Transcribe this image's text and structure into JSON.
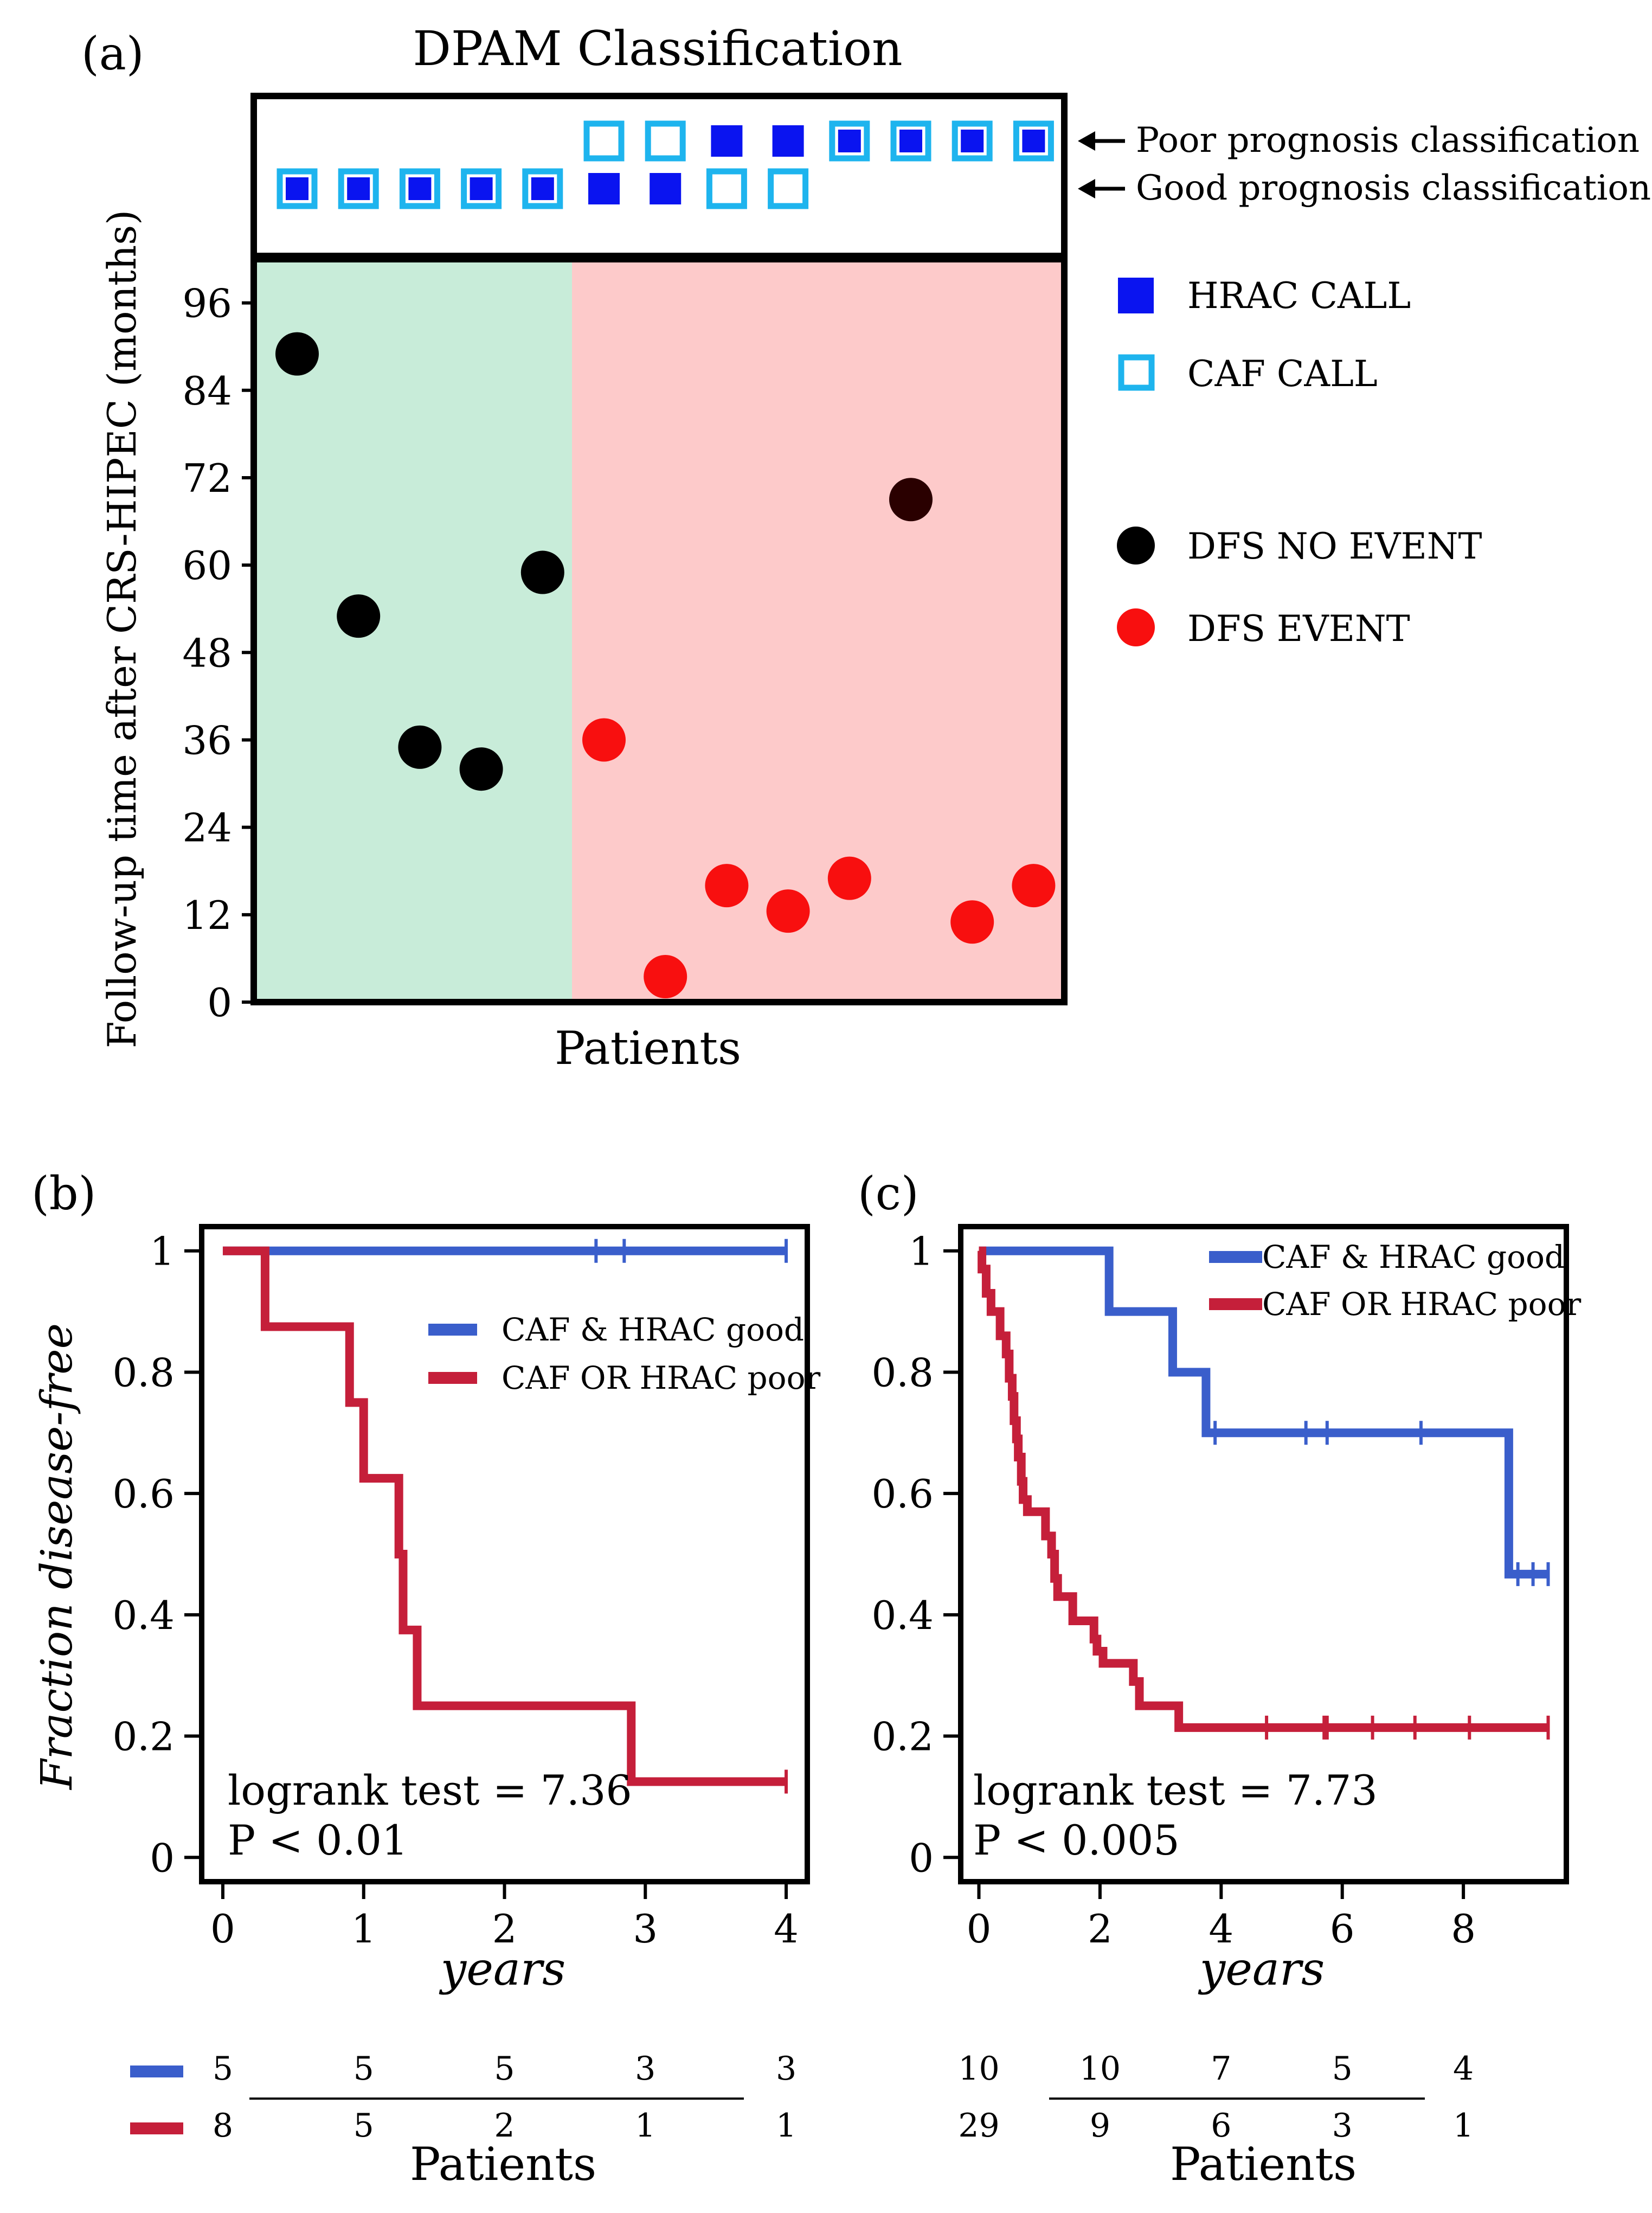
{
  "chart_data": [
    {
      "panel": "(a)",
      "type": "scatter",
      "title": "DPAM Classification",
      "xlabel": "Patients",
      "ylabel": "Follow-up time after CRS-HIPEC (months)",
      "ylim": [
        0,
        102
      ],
      "yticks": [
        0,
        12,
        24,
        36,
        48,
        60,
        72,
        84,
        96
      ],
      "row_labels": [
        "Poor prognosis classification",
        "Good prognosis classification"
      ],
      "classification": [
        {
          "patient": 1,
          "row": "good",
          "hrac": true,
          "caf": true
        },
        {
          "patient": 2,
          "row": "good",
          "hrac": true,
          "caf": true
        },
        {
          "patient": 3,
          "row": "good",
          "hrac": true,
          "caf": true
        },
        {
          "patient": 4,
          "row": "good",
          "hrac": true,
          "caf": true
        },
        {
          "patient": 5,
          "row": "good",
          "hrac": true,
          "caf": true
        },
        {
          "patient": 6,
          "row": "good",
          "hrac": true,
          "caf": false
        },
        {
          "patient": 6,
          "row": "poor",
          "hrac": false,
          "caf": true
        },
        {
          "patient": 7,
          "row": "good",
          "hrac": true,
          "caf": false
        },
        {
          "patient": 7,
          "row": "poor",
          "hrac": false,
          "caf": true
        },
        {
          "patient": 8,
          "row": "good",
          "hrac": false,
          "caf": true
        },
        {
          "patient": 8,
          "row": "poor",
          "hrac": true,
          "caf": false
        },
        {
          "patient": 9,
          "row": "good",
          "hrac": false,
          "caf": true
        },
        {
          "patient": 9,
          "row": "poor",
          "hrac": true,
          "caf": false
        },
        {
          "patient": 10,
          "row": "poor",
          "hrac": true,
          "caf": true
        },
        {
          "patient": 11,
          "row": "poor",
          "hrac": true,
          "caf": true
        },
        {
          "patient": 12,
          "row": "poor",
          "hrac": true,
          "caf": true
        },
        {
          "patient": 13,
          "row": "poor",
          "hrac": true,
          "caf": true
        }
      ],
      "points": [
        {
          "patient": 1,
          "months": 89,
          "event": false
        },
        {
          "patient": 2,
          "months": 53,
          "event": false
        },
        {
          "patient": 3,
          "months": 35,
          "event": false
        },
        {
          "patient": 4,
          "months": 32,
          "event": false
        },
        {
          "patient": 5,
          "months": 59,
          "event": false
        },
        {
          "patient": 6,
          "months": 36,
          "event": true
        },
        {
          "patient": 7,
          "months": 3.5,
          "event": true
        },
        {
          "patient": 8,
          "months": 16,
          "event": true
        },
        {
          "patient": 9,
          "months": 12.5,
          "event": true
        },
        {
          "patient": 10,
          "months": 17,
          "event": true
        },
        {
          "patient": 11,
          "months": 69,
          "event": false
        },
        {
          "patient": 12,
          "months": 11,
          "event": true
        },
        {
          "patient": 13,
          "months": 16,
          "event": true
        }
      ],
      "group_split_after_patient": 5,
      "legend": [
        "HRAC CALL",
        "CAF CALL",
        "DFS NO EVENT",
        "DFS EVENT"
      ],
      "colors": {
        "good_bg": "#c8ecd9",
        "poor_bg": "#fdcaca",
        "hrac": "#0a14f0",
        "caf": "#1eb4ee",
        "no_event": "#000000",
        "event": "#f80f0f",
        "dark_point": "#2a0000"
      }
    },
    {
      "panel": "(b)",
      "type": "line",
      "subtype": "kaplan-meier",
      "xlabel": "years",
      "ylabel": "Fraction disease-free",
      "xlim": [
        -0.15,
        4.15
      ],
      "ylim": [
        -0.04,
        1.04
      ],
      "xticks": [
        0,
        1,
        2,
        3,
        4
      ],
      "yticks": [
        0,
        0.2,
        0.4,
        0.6,
        0.8,
        1
      ],
      "ytick_labels": [
        "0",
        "0.2",
        "0.4",
        "0.6",
        "0.8",
        "1"
      ],
      "series": [
        {
          "name": "CAF & HRAC good",
          "color": "#3a5ecb",
          "steps": [
            [
              0,
              1
            ],
            [
              4,
              1
            ]
          ],
          "censored": [
            [
              2.65,
              1
            ],
            [
              2.85,
              1
            ],
            [
              4,
              1
            ]
          ]
        },
        {
          "name": "CAF OR HRAC poor",
          "color": "#c51f3a",
          "steps": [
            [
              0,
              1
            ],
            [
              0.3,
              0.875
            ],
            [
              0.9,
              0.75
            ],
            [
              1.0,
              0.625
            ],
            [
              1.25,
              0.5
            ],
            [
              1.28,
              0.375
            ],
            [
              1.38,
              0.25
            ],
            [
              2.9,
              0.125
            ],
            [
              4,
              0.125
            ]
          ],
          "censored": [
            [
              4,
              0.125
            ]
          ]
        }
      ],
      "annotation": [
        "logrank test = 7.36",
        "P < 0.01"
      ],
      "risk_table": {
        "times": [
          0,
          1,
          2,
          3,
          4
        ],
        "rows": [
          [
            5,
            5,
            5,
            3,
            3
          ],
          [
            8,
            5,
            2,
            1,
            1
          ]
        ],
        "label": "Patients"
      }
    },
    {
      "panel": "(c)",
      "type": "line",
      "subtype": "kaplan-meier",
      "xlabel": "years",
      "ylabel": "",
      "xlim": [
        -0.3,
        9.7
      ],
      "ylim": [
        -0.04,
        1.04
      ],
      "xticks": [
        0,
        2,
        4,
        6,
        8
      ],
      "yticks": [
        0,
        0.2,
        0.4,
        0.6,
        0.8,
        1
      ],
      "ytick_labels": [
        "0",
        "0.2",
        "0.4",
        "0.6",
        "0.8",
        "1"
      ],
      "series": [
        {
          "name": "CAF & HRAC good",
          "color": "#3a5ecb",
          "steps": [
            [
              0,
              1
            ],
            [
              2.15,
              0.9
            ],
            [
              3.2,
              0.8
            ],
            [
              3.75,
              0.7
            ],
            [
              8.75,
              0.467
            ],
            [
              9.4,
              0.467
            ]
          ],
          "censored": [
            [
              3.9,
              0.7
            ],
            [
              5.4,
              0.7
            ],
            [
              5.75,
              0.7
            ],
            [
              7.3,
              0.7
            ],
            [
              8.9,
              0.467
            ],
            [
              9.15,
              0.467
            ],
            [
              9.4,
              0.467
            ]
          ]
        },
        {
          "name": "CAF OR HRAC poor",
          "color": "#c51f3a",
          "steps": [
            [
              0,
              1
            ],
            [
              0.05,
              0.97
            ],
            [
              0.12,
              0.93
            ],
            [
              0.2,
              0.9
            ],
            [
              0.35,
              0.86
            ],
            [
              0.45,
              0.83
            ],
            [
              0.5,
              0.79
            ],
            [
              0.55,
              0.76
            ],
            [
              0.58,
              0.72
            ],
            [
              0.62,
              0.69
            ],
            [
              0.65,
              0.66
            ],
            [
              0.7,
              0.62
            ],
            [
              0.73,
              0.59
            ],
            [
              0.8,
              0.57
            ],
            [
              1.1,
              0.53
            ],
            [
              1.2,
              0.5
            ],
            [
              1.25,
              0.46
            ],
            [
              1.3,
              0.43
            ],
            [
              1.55,
              0.39
            ],
            [
              1.9,
              0.36
            ],
            [
              1.95,
              0.34
            ],
            [
              2.05,
              0.32
            ],
            [
              2.55,
              0.29
            ],
            [
              2.65,
              0.25
            ],
            [
              3.3,
              0.214
            ],
            [
              9.4,
              0.214
            ]
          ],
          "censored": [
            [
              4.75,
              0.214
            ],
            [
              5.7,
              0.214
            ],
            [
              5.75,
              0.214
            ],
            [
              6.5,
              0.214
            ],
            [
              7.2,
              0.214
            ],
            [
              8.1,
              0.214
            ],
            [
              9.4,
              0.214
            ]
          ]
        }
      ],
      "annotation": [
        "logrank test = 7.73",
        "P < 0.005"
      ],
      "risk_table": {
        "times": [
          0,
          2,
          4,
          6,
          8
        ],
        "rows": [
          [
            10,
            10,
            7,
            5,
            4
          ],
          [
            29,
            9,
            6,
            3,
            1
          ]
        ],
        "label": "Patients"
      }
    }
  ]
}
